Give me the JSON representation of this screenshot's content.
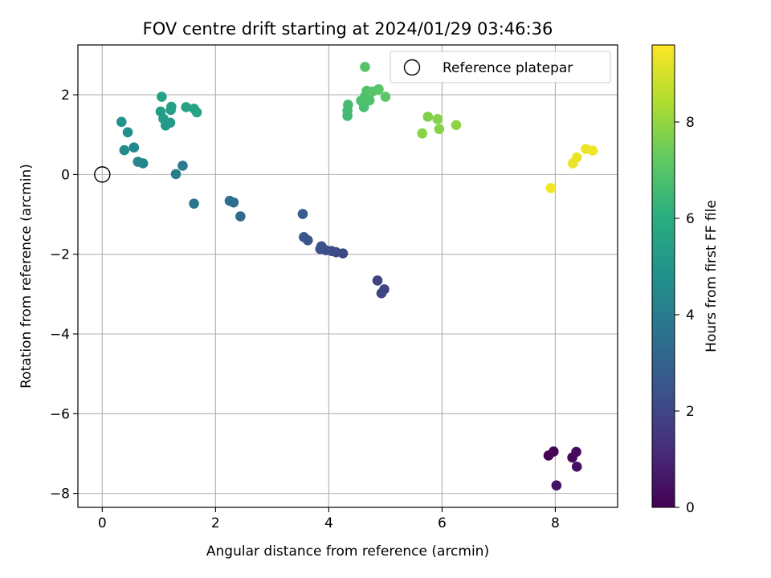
{
  "chart_data": {
    "type": "scatter",
    "title": "FOV centre drift starting at 2024/01/29 03:46:36",
    "xlabel": "Angular distance from reference (arcmin)",
    "ylabel": "Rotation from reference (arcmin)",
    "xlim": [
      -0.43,
      9.1
    ],
    "ylim": [
      -8.35,
      3.25
    ],
    "xticks": [
      "0",
      "2",
      "4",
      "6",
      "8"
    ],
    "yticks": [
      "−8",
      "−6",
      "−4",
      "−2",
      "0",
      "2"
    ],
    "grid": true,
    "legend": {
      "position": "top-right",
      "entries": [
        "Reference platepar"
      ]
    },
    "reference_point": {
      "x": 0,
      "y": 0
    },
    "colorbar": {
      "label": "Hours from first FF file",
      "range": [
        0,
        9.6
      ],
      "ticks": [
        "0",
        "2",
        "4",
        "6",
        "8"
      ],
      "colormap": "viridis"
    },
    "points": [
      {
        "x": 7.88,
        "y": -7.05,
        "t": 0.0
      },
      {
        "x": 7.97,
        "y": -6.95,
        "t": 0.1
      },
      {
        "x": 8.3,
        "y": -7.1,
        "t": 0.2
      },
      {
        "x": 8.37,
        "y": -6.96,
        "t": 0.3
      },
      {
        "x": 8.38,
        "y": -7.33,
        "t": 0.4
      },
      {
        "x": 8.02,
        "y": -7.8,
        "t": 0.5
      },
      {
        "x": 4.86,
        "y": -2.66,
        "t": 1.9
      },
      {
        "x": 4.98,
        "y": -2.88,
        "t": 1.95
      },
      {
        "x": 4.93,
        "y": -2.98,
        "t": 2.0
      },
      {
        "x": 4.25,
        "y": -1.98,
        "t": 2.1
      },
      {
        "x": 4.13,
        "y": -1.95,
        "t": 2.15
      },
      {
        "x": 4.05,
        "y": -1.92,
        "t": 2.2
      },
      {
        "x": 3.95,
        "y": -1.9,
        "t": 2.3
      },
      {
        "x": 3.85,
        "y": -1.87,
        "t": 2.35
      },
      {
        "x": 3.87,
        "y": -1.8,
        "t": 2.4
      },
      {
        "x": 3.63,
        "y": -1.65,
        "t": 2.5
      },
      {
        "x": 3.56,
        "y": -1.57,
        "t": 2.6
      },
      {
        "x": 3.54,
        "y": -0.99,
        "t": 2.8
      },
      {
        "x": 2.44,
        "y": -1.05,
        "t": 3.3
      },
      {
        "x": 2.32,
        "y": -0.7,
        "t": 3.4
      },
      {
        "x": 2.25,
        "y": -0.66,
        "t": 3.5
      },
      {
        "x": 1.62,
        "y": -0.73,
        "t": 3.8
      },
      {
        "x": 1.42,
        "y": 0.22,
        "t": 3.95
      },
      {
        "x": 1.3,
        "y": 0.01,
        "t": 4.05
      },
      {
        "x": 0.72,
        "y": 0.28,
        "t": 4.3
      },
      {
        "x": 0.63,
        "y": 0.32,
        "t": 4.4
      },
      {
        "x": 0.56,
        "y": 0.68,
        "t": 4.5
      },
      {
        "x": 0.39,
        "y": 0.61,
        "t": 4.6
      },
      {
        "x": 0.45,
        "y": 1.06,
        "t": 4.75
      },
      {
        "x": 0.34,
        "y": 1.32,
        "t": 4.85
      },
      {
        "x": 1.12,
        "y": 1.23,
        "t": 5.1
      },
      {
        "x": 1.2,
        "y": 1.3,
        "t": 5.2
      },
      {
        "x": 1.08,
        "y": 1.4,
        "t": 5.25
      },
      {
        "x": 1.03,
        "y": 1.58,
        "t": 5.3
      },
      {
        "x": 1.21,
        "y": 1.62,
        "t": 5.35
      },
      {
        "x": 1.22,
        "y": 1.7,
        "t": 5.4
      },
      {
        "x": 1.05,
        "y": 1.95,
        "t": 5.45
      },
      {
        "x": 1.48,
        "y": 1.69,
        "t": 5.5
      },
      {
        "x": 1.62,
        "y": 1.65,
        "t": 5.55
      },
      {
        "x": 1.67,
        "y": 1.56,
        "t": 5.6
      },
      {
        "x": 4.33,
        "y": 1.47,
        "t": 6.5
      },
      {
        "x": 4.33,
        "y": 1.6,
        "t": 6.55
      },
      {
        "x": 4.34,
        "y": 1.75,
        "t": 6.6
      },
      {
        "x": 4.62,
        "y": 1.69,
        "t": 6.7
      },
      {
        "x": 4.57,
        "y": 1.85,
        "t": 6.75
      },
      {
        "x": 4.64,
        "y": 1.96,
        "t": 6.8
      },
      {
        "x": 4.72,
        "y": 1.86,
        "t": 6.85
      },
      {
        "x": 4.67,
        "y": 2.1,
        "t": 6.9
      },
      {
        "x": 4.64,
        "y": 2.7,
        "t": 6.95
      },
      {
        "x": 4.77,
        "y": 2.08,
        "t": 7.0
      },
      {
        "x": 4.88,
        "y": 2.14,
        "t": 7.05
      },
      {
        "x": 5.0,
        "y": 1.95,
        "t": 7.1
      },
      {
        "x": 5.75,
        "y": 1.45,
        "t": 7.7
      },
      {
        "x": 5.92,
        "y": 1.39,
        "t": 7.75
      },
      {
        "x": 5.95,
        "y": 1.14,
        "t": 7.8
      },
      {
        "x": 5.65,
        "y": 1.03,
        "t": 7.85
      },
      {
        "x": 6.25,
        "y": 1.24,
        "t": 7.95
      },
      {
        "x": 7.92,
        "y": -0.34,
        "t": 9.45
      },
      {
        "x": 8.31,
        "y": 0.28,
        "t": 9.3
      },
      {
        "x": 8.38,
        "y": 0.43,
        "t": 9.32
      },
      {
        "x": 8.54,
        "y": 0.64,
        "t": 9.35
      },
      {
        "x": 8.66,
        "y": 0.6,
        "t": 9.38
      }
    ]
  }
}
